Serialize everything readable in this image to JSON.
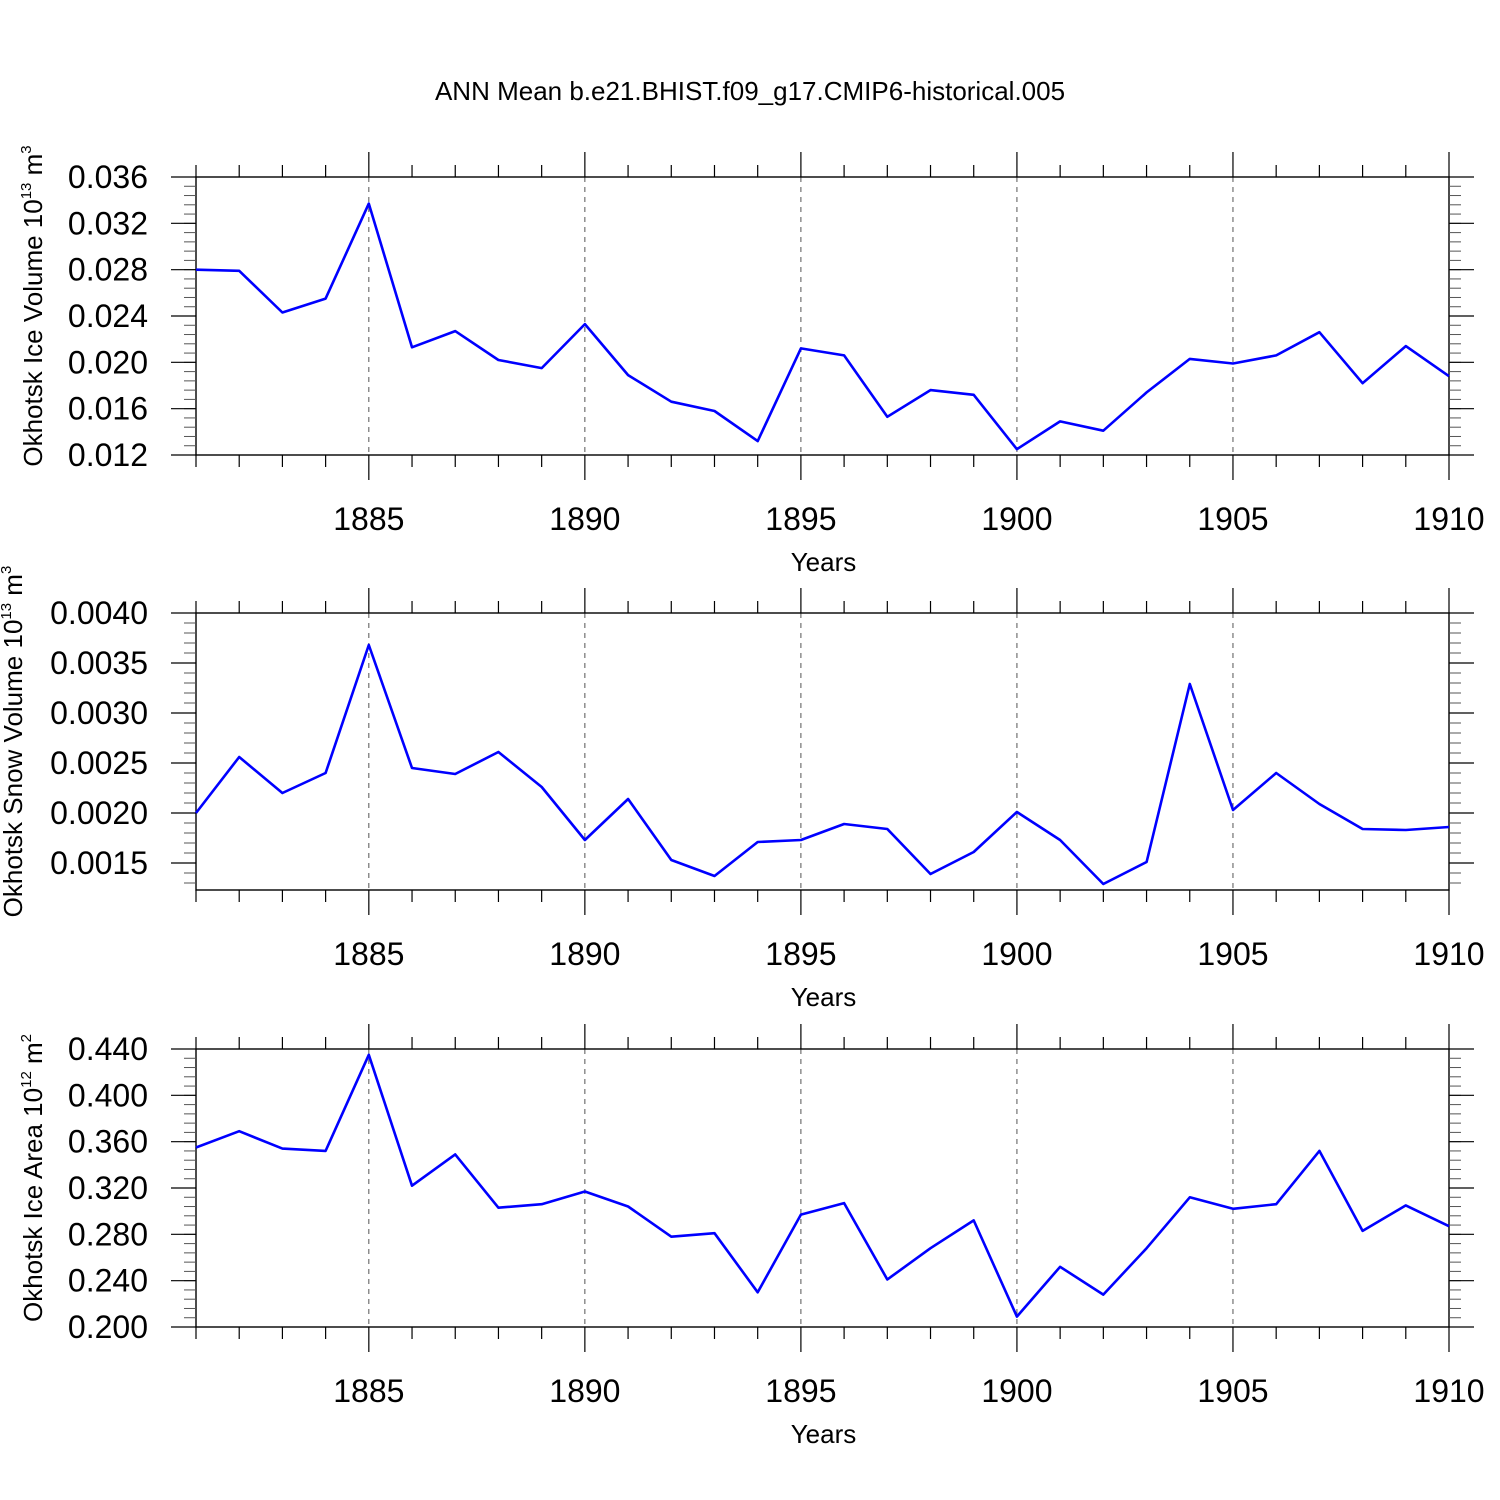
{
  "figure_title": "ANN Mean b.e21.BHIST.f09_g17.CMIP6-historical.005",
  "line_color": "#0000ff",
  "chart_data": [
    {
      "type": "line",
      "title": "ANN Mean b.e21.BHIST.f09_g17.CMIP6-historical.005",
      "ylabel": {
        "main": "Okhotsk Ice Volume 10",
        "exp": "13",
        "unit": " m",
        "unit_exp": "3"
      },
      "xlabel": "Years",
      "xlim": [
        1881,
        1910
      ],
      "ylim": [
        0.012,
        0.036
      ],
      "x_ticks": [
        1885,
        1890,
        1895,
        1900,
        1905,
        1910
      ],
      "y_ticks": [
        0.012,
        0.016,
        0.02,
        0.024,
        0.028,
        0.032,
        0.036
      ],
      "y_tick_labels": [
        "0.012",
        "0.016",
        "0.020",
        "0.024",
        "0.028",
        "0.032",
        "0.036"
      ],
      "y_minor_step": 0.0008,
      "grid": "vertical dashed at major x ticks",
      "x": [
        1881,
        1882,
        1883,
        1884,
        1885,
        1886,
        1887,
        1888,
        1889,
        1890,
        1891,
        1892,
        1893,
        1894,
        1895,
        1896,
        1897,
        1898,
        1899,
        1900,
        1901,
        1902,
        1903,
        1904,
        1905,
        1906,
        1907,
        1908,
        1909,
        1910
      ],
      "values": [
        0.028,
        0.0279,
        0.0243,
        0.0255,
        0.0337,
        0.0213,
        0.0227,
        0.0202,
        0.0195,
        0.0233,
        0.0189,
        0.0166,
        0.0158,
        0.0132,
        0.0212,
        0.0206,
        0.0153,
        0.0176,
        0.0172,
        0.0125,
        0.0149,
        0.0141,
        0.0174,
        0.0203,
        0.0199,
        0.0206,
        0.0226,
        0.0182,
        0.0214,
        0.0188
      ]
    },
    {
      "type": "line",
      "ylabel": {
        "main": "Okhotsk Snow Volume 10",
        "exp": "13",
        "unit": " m",
        "unit_exp": "3"
      },
      "xlabel": "Years",
      "xlim": [
        1881,
        1910
      ],
      "ylim": [
        0.00123,
        0.004
      ],
      "x_ticks": [
        1885,
        1890,
        1895,
        1900,
        1905,
        1910
      ],
      "y_ticks": [
        0.0015,
        0.002,
        0.0025,
        0.003,
        0.0035,
        0.004
      ],
      "y_tick_labels": [
        "0.0015",
        "0.0020",
        "0.0025",
        "0.0030",
        "0.0035",
        "0.0040"
      ],
      "y_minor_step": 0.0001,
      "grid": "vertical dashed at major x ticks",
      "x": [
        1881,
        1882,
        1883,
        1884,
        1885,
        1886,
        1887,
        1888,
        1889,
        1890,
        1891,
        1892,
        1893,
        1894,
        1895,
        1896,
        1897,
        1898,
        1899,
        1900,
        1901,
        1902,
        1903,
        1904,
        1905,
        1906,
        1907,
        1908,
        1909,
        1910
      ],
      "values": [
        0.002,
        0.00256,
        0.0022,
        0.0024,
        0.00368,
        0.00245,
        0.00239,
        0.00261,
        0.00226,
        0.00173,
        0.00214,
        0.00153,
        0.00137,
        0.00171,
        0.00173,
        0.00189,
        0.00184,
        0.00139,
        0.00161,
        0.00201,
        0.00173,
        0.00129,
        0.00151,
        0.00329,
        0.00203,
        0.0024,
        0.00209,
        0.00184,
        0.00183,
        0.00186
      ]
    },
    {
      "type": "line",
      "ylabel": {
        "main": "Okhotsk Ice Area 10",
        "exp": "12",
        "unit": " m",
        "unit_exp": "2"
      },
      "xlabel": "Years",
      "xlim": [
        1881,
        1910
      ],
      "ylim": [
        0.2,
        0.44
      ],
      "x_ticks": [
        1885,
        1890,
        1895,
        1900,
        1905,
        1910
      ],
      "y_ticks": [
        0.2,
        0.24,
        0.28,
        0.32,
        0.36,
        0.4,
        0.44
      ],
      "y_tick_labels": [
        "0.200",
        "0.240",
        "0.280",
        "0.320",
        "0.360",
        "0.400",
        "0.440"
      ],
      "y_minor_step": 0.008,
      "grid": "vertical dashed at major x ticks",
      "x": [
        1881,
        1882,
        1883,
        1884,
        1885,
        1886,
        1887,
        1888,
        1889,
        1890,
        1891,
        1892,
        1893,
        1894,
        1895,
        1896,
        1897,
        1898,
        1899,
        1900,
        1901,
        1902,
        1903,
        1904,
        1905,
        1906,
        1907,
        1908,
        1909,
        1910
      ],
      "values": [
        0.355,
        0.369,
        0.354,
        0.352,
        0.435,
        0.322,
        0.349,
        0.303,
        0.306,
        0.317,
        0.304,
        0.278,
        0.281,
        0.23,
        0.297,
        0.307,
        0.241,
        0.268,
        0.292,
        0.209,
        0.252,
        0.228,
        0.268,
        0.312,
        0.302,
        0.306,
        0.352,
        0.283,
        0.305,
        0.287
      ]
    }
  ]
}
